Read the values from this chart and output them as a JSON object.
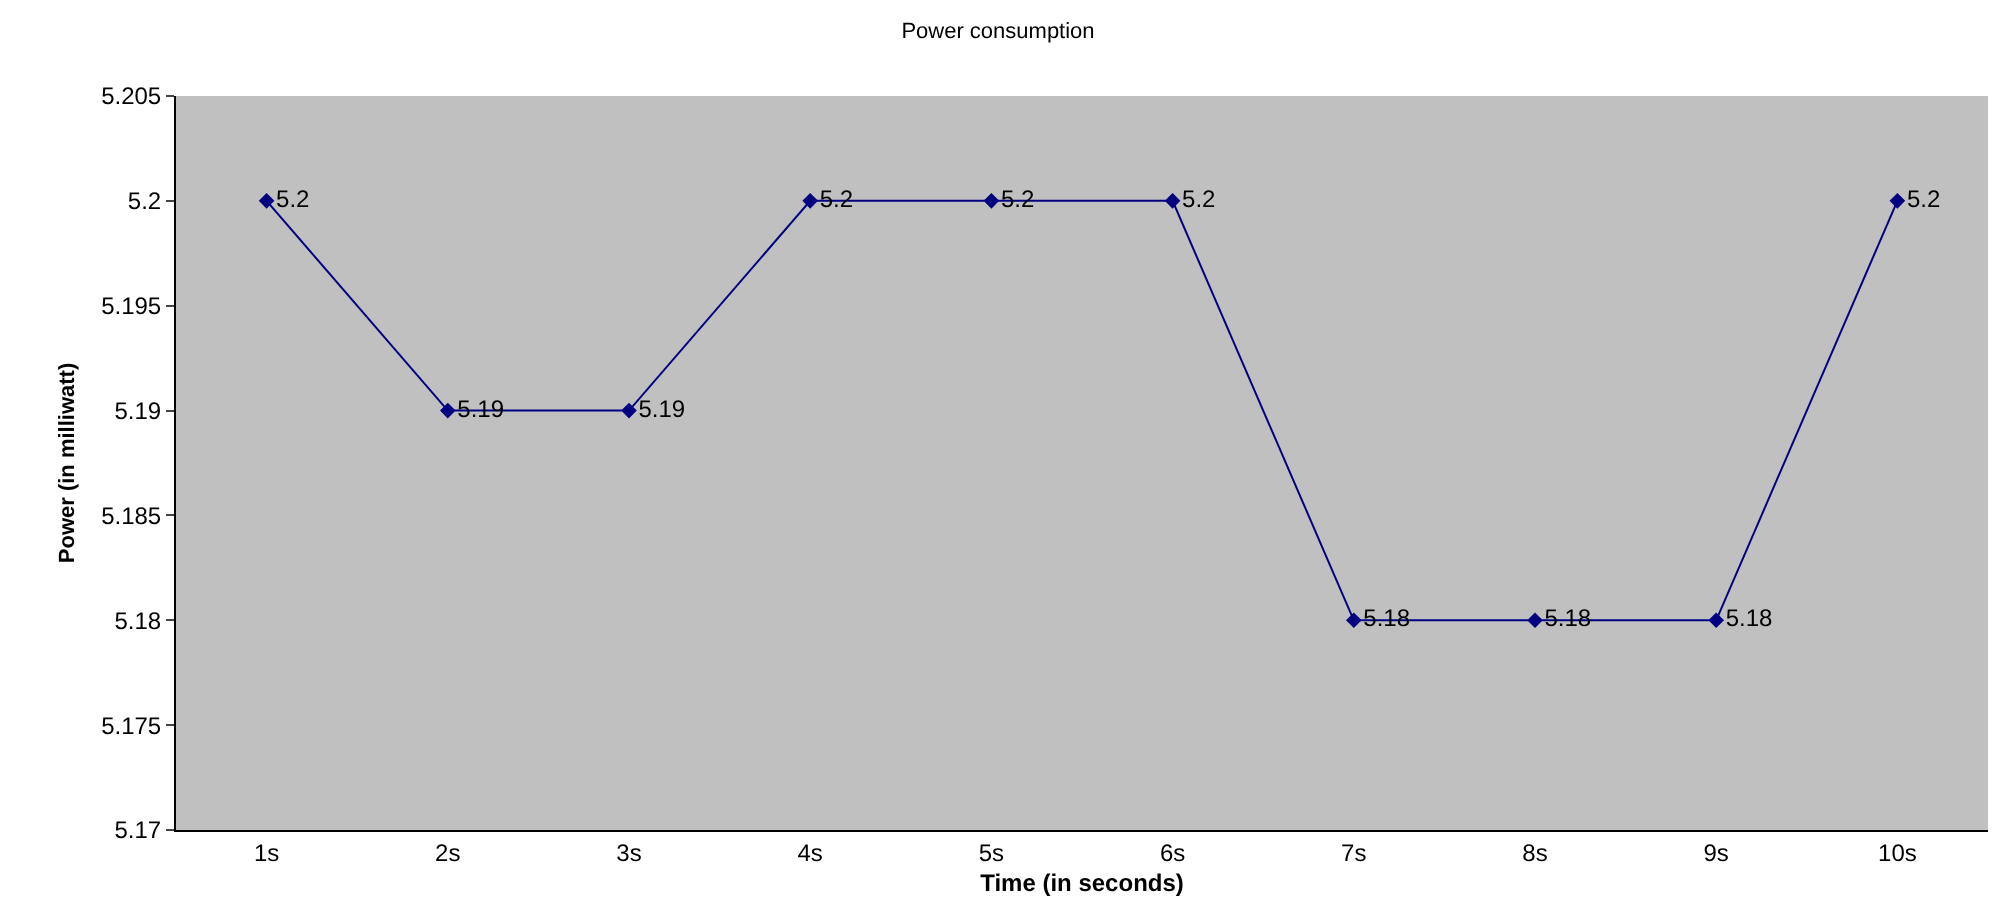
{
  "chart_data": {
    "type": "line",
    "title": "Power consumption",
    "xlabel": "Time (in seconds)",
    "ylabel": "Power (in milliwatt)",
    "categories": [
      "1s",
      "2s",
      "3s",
      "4s",
      "5s",
      "6s",
      "7s",
      "8s",
      "9s",
      "10s"
    ],
    "series": [
      {
        "color": "#000080",
        "values": [
          5.2,
          5.19,
          5.19,
          5.2,
          5.2,
          5.2,
          5.18,
          5.18,
          5.18,
          5.2
        ]
      }
    ],
    "ylim": [
      5.17,
      5.205
    ],
    "yticks": [
      5.17,
      5.175,
      5.18,
      5.185,
      5.19,
      5.195,
      5.2,
      5.205
    ],
    "grid": false,
    "marker": "diamond",
    "line_style": "solid",
    "data_labels": true
  }
}
